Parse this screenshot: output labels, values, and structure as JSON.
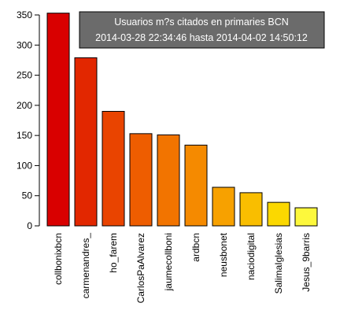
{
  "chart_data": {
    "type": "bar",
    "categories": [
      "collbonixbcn",
      "carmenandres_",
      "ho_farem",
      "CarlosPaAlvarez",
      "jaumecollboni",
      "ardbcn",
      "neusbonet",
      "naciodigital",
      "SalimaIglesias",
      "Jesus_9barris"
    ],
    "values": [
      353,
      279,
      190,
      153,
      151,
      134,
      64,
      55,
      39,
      30
    ],
    "colors": [
      "#d90000",
      "#e22700",
      "#e94400",
      "#ee5d00",
      "#f27400",
      "#f58a00",
      "#f7a100",
      "#f9be00",
      "#fbd800",
      "#fdf83c"
    ],
    "ylim": [
      0,
      350
    ],
    "yticks": [
      0,
      50,
      100,
      150,
      200,
      250,
      300,
      350
    ],
    "legend": {
      "position": "top-right",
      "line1": "Usuarios m?s citados en   primaries BCN",
      "line2": "2014-03-28 22:34:46  hasta  2014-04-02 14:50:12",
      "background": "#6b6b6b"
    }
  }
}
